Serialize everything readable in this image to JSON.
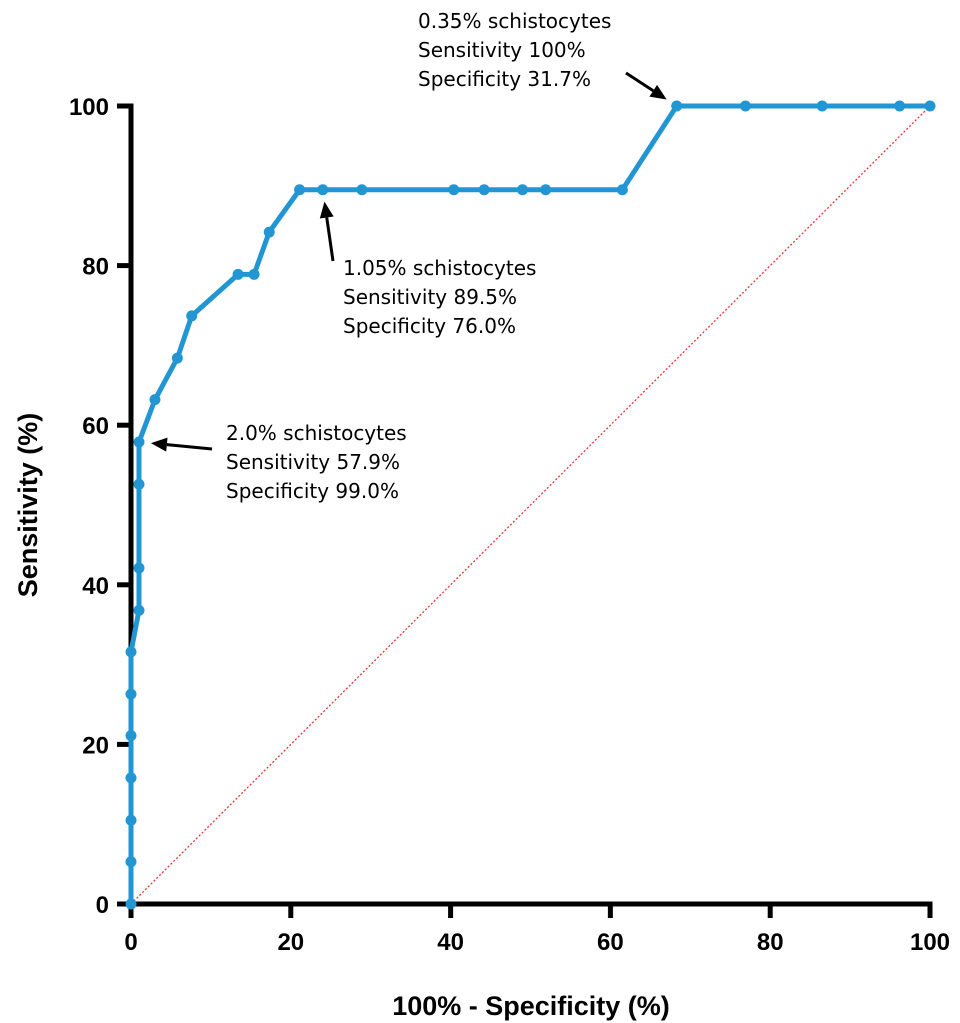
{
  "chart_data": {
    "type": "line",
    "title": "",
    "xlabel": "100% - Specificity (%)",
    "ylabel": "Sensitivity (%)",
    "xlim": [
      0,
      100
    ],
    "ylim": [
      0,
      100
    ],
    "x_ticks": [
      0,
      20,
      40,
      60,
      80,
      100
    ],
    "y_ticks": [
      0,
      20,
      40,
      60,
      80,
      100
    ],
    "grid": false,
    "legend": "none",
    "series": [
      {
        "color": "#2196d3",
        "points": [
          [
            0,
            0
          ],
          [
            0,
            5.3
          ],
          [
            0,
            10.5
          ],
          [
            0,
            15.8
          ],
          [
            0,
            21.1
          ],
          [
            0,
            26.3
          ],
          [
            0,
            31.6
          ],
          [
            1.0,
            36.8
          ],
          [
            1.0,
            42.1
          ],
          [
            1.0,
            52.6
          ],
          [
            1.0,
            57.9
          ],
          [
            3.0,
            63.2
          ],
          [
            5.8,
            68.4
          ],
          [
            7.6,
            73.7
          ],
          [
            13.4,
            78.9
          ],
          [
            15.4,
            78.9
          ],
          [
            17.3,
            84.2
          ],
          [
            21.1,
            89.5
          ],
          [
            24.0,
            89.5
          ],
          [
            28.9,
            89.5
          ],
          [
            40.4,
            89.5
          ],
          [
            44.2,
            89.5
          ],
          [
            49.0,
            89.5
          ],
          [
            51.9,
            89.5
          ],
          [
            61.5,
            89.5
          ],
          [
            68.3,
            100
          ],
          [
            76.9,
            100
          ],
          [
            86.5,
            100
          ],
          [
            96.2,
            100
          ],
          [
            100,
            100
          ]
        ]
      }
    ],
    "reference_line": {
      "from": [
        0,
        0
      ],
      "to": [
        100,
        100
      ],
      "color": "#e53935",
      "style": "dotted"
    },
    "annotations": [
      {
        "lines": [
          "0.35% schistocytes",
          "Sensitivity 100%",
          "Specificity 31.7%"
        ],
        "target": [
          68.3,
          100
        ]
      },
      {
        "lines": [
          "1.05% schistocytes",
          "Sensitivity 89.5%",
          "Specificity 76.0%"
        ],
        "target": [
          24.0,
          89.5
        ]
      },
      {
        "lines": [
          "2.0% schistocytes",
          "Sensitivity 57.9%",
          "Specificity 99.0%"
        ],
        "target": [
          1.0,
          57.9
        ]
      }
    ]
  }
}
